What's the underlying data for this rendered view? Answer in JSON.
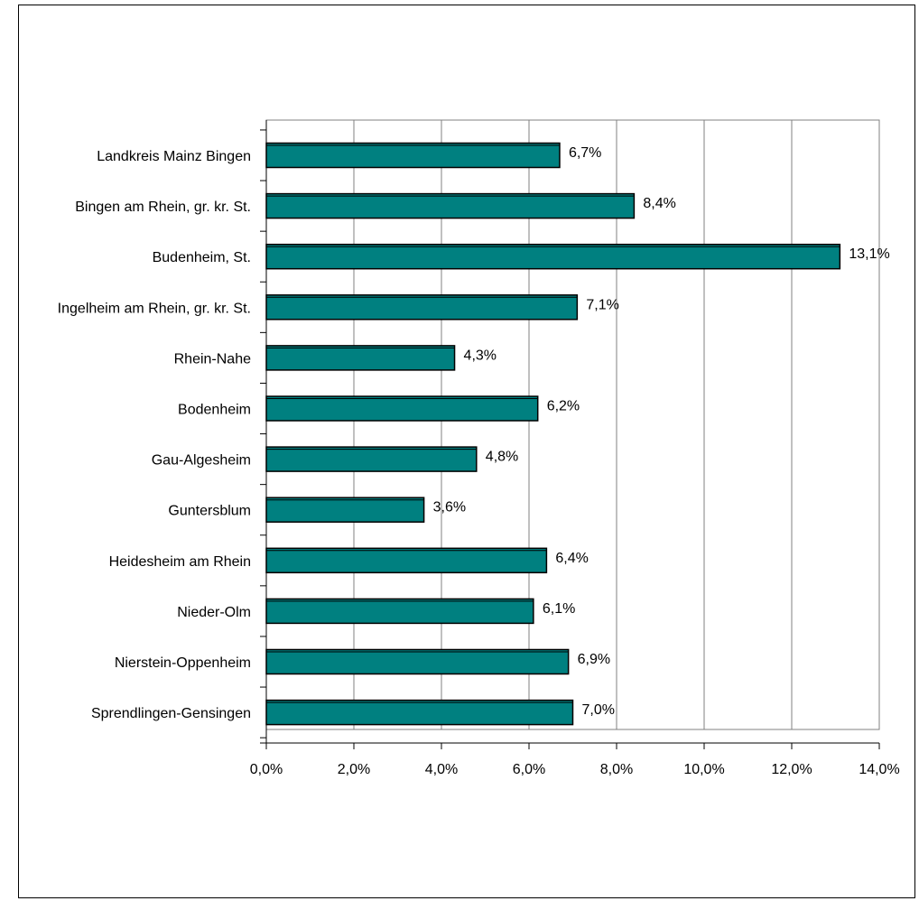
{
  "chart_data": {
    "type": "bar",
    "orientation": "horizontal",
    "title": "",
    "xlabel": "",
    "ylabel": "",
    "categories": [
      "Landkreis Mainz Bingen",
      "Bingen am Rhein, gr. kr. St.",
      "Budenheim, St.",
      "Ingelheim am Rhein, gr. kr. St.",
      "Rhein-Nahe",
      "Bodenheim",
      "Gau-Algesheim",
      "Guntersblum",
      "Heidesheim am Rhein",
      "Nieder-Olm",
      "Nierstein-Oppenheim",
      "Sprendlingen-Gensingen"
    ],
    "values": [
      6.7,
      8.4,
      13.1,
      7.1,
      4.3,
      6.2,
      4.8,
      3.6,
      6.4,
      6.1,
      6.9,
      7.0
    ],
    "value_labels": [
      "6,7%",
      "8,4%",
      "13,1%",
      "7,1%",
      "4,3%",
      "6,2%",
      "4,8%",
      "3,6%",
      "6,4%",
      "6,1%",
      "6,9%",
      "7,0%"
    ],
    "xlim": [
      0,
      14
    ],
    "x_ticks": [
      0,
      2,
      4,
      6,
      8,
      10,
      12,
      14
    ],
    "x_tick_labels": [
      "0,0%",
      "2,0%",
      "4,0%",
      "6,0%",
      "8,0%",
      "10,0%",
      "12,0%",
      "14,0%"
    ],
    "grid": "vertical",
    "legend": "none",
    "colors": {
      "bar": "#008080",
      "bar_edge": "#000000",
      "grid": "#808080"
    }
  }
}
